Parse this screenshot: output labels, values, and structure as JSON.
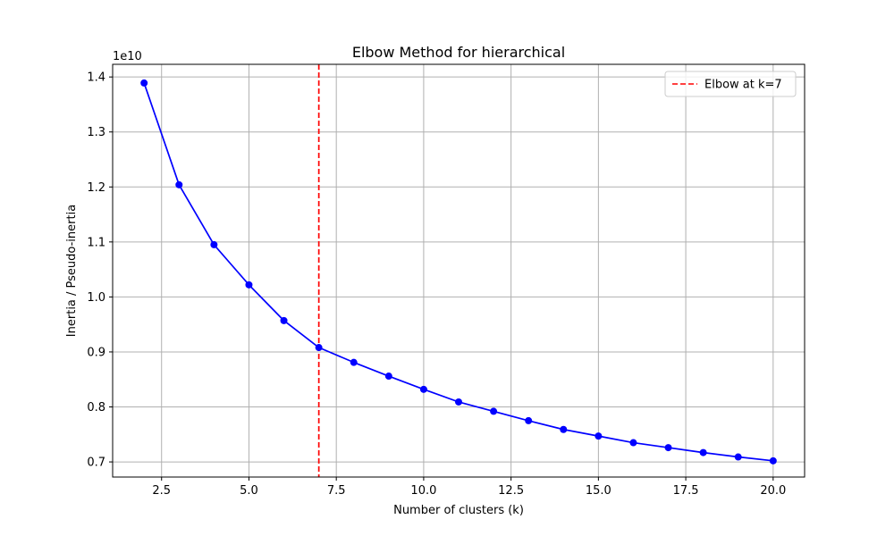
{
  "chart_data": {
    "type": "line",
    "title": "Elbow Method for hierarchical",
    "xlabel": "Number of clusters (k)",
    "ylabel": "Inertia / Pseudo-inertia",
    "y_offset_label": "1e10",
    "y_scale": 10000000000,
    "xlim": [
      1.1,
      20.9
    ],
    "ylim": [
      0.6725,
      1.423
    ],
    "x_ticks": [
      2.5,
      5.0,
      7.5,
      10.0,
      12.5,
      15.0,
      17.5,
      20.0
    ],
    "x_tick_labels": [
      "2.5",
      "5.0",
      "7.5",
      "10.0",
      "12.5",
      "15.0",
      "17.5",
      "20.0"
    ],
    "y_ticks": [
      0.7,
      0.8,
      0.9,
      1.0,
      1.1,
      1.2,
      1.3,
      1.4
    ],
    "y_tick_labels": [
      "0.7",
      "0.8",
      "0.9",
      "1.0",
      "1.1",
      "1.2",
      "1.3",
      "1.4"
    ],
    "grid": true,
    "legend_position": "top-right",
    "series": [
      {
        "color": "#0000ff",
        "marker": "circle",
        "x": [
          2,
          3,
          4,
          5,
          6,
          7,
          8,
          9,
          10,
          11,
          12,
          13,
          14,
          15,
          16,
          17,
          18,
          19,
          20
        ],
        "y": [
          1.389,
          1.204,
          1.095,
          1.022,
          0.957,
          0.908,
          0.881,
          0.856,
          0.832,
          0.809,
          0.792,
          0.775,
          0.759,
          0.747,
          0.735,
          0.726,
          0.717,
          0.709,
          0.702
        ]
      }
    ],
    "vlines": [
      {
        "x": 7,
        "color": "#ff0000",
        "style": "dashed",
        "label": "Elbow at k=7"
      }
    ]
  }
}
